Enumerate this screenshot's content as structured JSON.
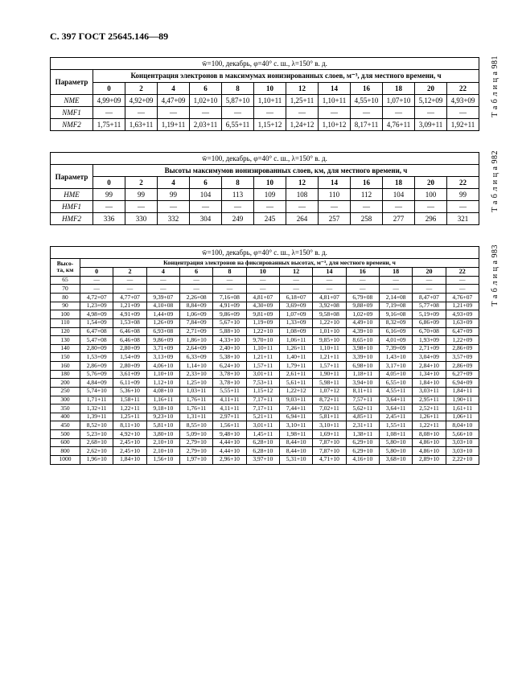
{
  "page_header": "С. 397 ГОСТ 25645.146—89",
  "tables": [
    {
      "caption": "Т а б л и ц а 981",
      "subcap": "w̄=100, декабрь, φ=40° с. ш., λ=150° в. д.",
      "super": "Концентрация электронов в максимумах ионизированных слоев, м⁻³, для местного времени, ч",
      "param_label": "Параметр",
      "cols": [
        "0",
        "2",
        "4",
        "6",
        "8",
        "10",
        "12",
        "14",
        "16",
        "18",
        "20",
        "22"
      ],
      "rows": [
        {
          "label": "NME",
          "cells": [
            "4,99+09",
            "4,92+09",
            "4,47+09",
            "1,02+10",
            "5,87+10",
            "1,10+11",
            "1,25+11",
            "1,10+11",
            "4,55+10",
            "1,07+10",
            "5,12+09",
            "4,93+09"
          ]
        },
        {
          "label": "NMF1",
          "cells": [
            "—",
            "—",
            "—",
            "—",
            "—",
            "—",
            "—",
            "—",
            "—",
            "—",
            "—",
            "—"
          ]
        },
        {
          "label": "NMF2",
          "cells": [
            "1,75+11",
            "1,63+11",
            "1,19+11",
            "2,03+11",
            "6,55+11",
            "1,15+12",
            "1,24+12",
            "1,10+12",
            "8,17+11",
            "4,76+11",
            "3,09+11",
            "1,92+11"
          ]
        }
      ]
    },
    {
      "caption": "Т а б л и ц а 982",
      "subcap": "w̄=100, декабрь, φ=40° с. ш., λ=150° в. д.",
      "super": "Высоты максимумов ионизированных слоев, км, для местного времени, ч",
      "param_label": "Параметр",
      "cols": [
        "0",
        "2",
        "4",
        "6",
        "8",
        "10",
        "12",
        "14",
        "16",
        "18",
        "20",
        "22"
      ],
      "rows": [
        {
          "label": "HME",
          "cells": [
            "99",
            "99",
            "99",
            "104",
            "113",
            "109",
            "108",
            "110",
            "112",
            "104",
            "100",
            "99"
          ]
        },
        {
          "label": "HMF1",
          "cells": [
            "—",
            "—",
            "—",
            "—",
            "—",
            "—",
            "—",
            "—",
            "—",
            "—",
            "—",
            "—"
          ]
        },
        {
          "label": "HMF2",
          "cells": [
            "336",
            "330",
            "332",
            "304",
            "249",
            "245",
            "264",
            "257",
            "258",
            "277",
            "296",
            "321"
          ]
        }
      ]
    },
    {
      "caption": "Т а б л и ц а 983",
      "subcap": "w̄=100, декабрь, φ=40° с. ш., λ=150° в. д.",
      "super": "Концентрация электронов на фиксированных высотах, м⁻³, для местного времени, ч",
      "param_label": "Высо-\nта, км",
      "cols": [
        "0",
        "2",
        "4",
        "6",
        "8",
        "10",
        "12",
        "14",
        "16",
        "18",
        "20",
        "22"
      ],
      "heights": [
        "65",
        "70",
        "80",
        "90",
        "100",
        "110",
        "120",
        "130",
        "140",
        "150",
        "160",
        "180",
        "200",
        "250",
        "300",
        "350",
        "400",
        "450",
        "500",
        "600",
        "800",
        "1000"
      ],
      "matrix": [
        [
          "—",
          "—",
          "—",
          "—",
          "—",
          "—",
          "—",
          "—",
          "—",
          "—",
          "—",
          "—"
        ],
        [
          "—",
          "—",
          "—",
          "—",
          "—",
          "—",
          "—",
          "—",
          "—",
          "—",
          "—",
          "—"
        ],
        [
          "4,72+07",
          "4,77+07",
          "9,39+07",
          "2,26+08",
          "7,16+08",
          "4,81+07",
          "6,18+07",
          "4,81+07",
          "6,79+08",
          "2,14+08",
          "8,47+07",
          "4,76+07"
        ],
        [
          "1,23+09",
          "1,21+09",
          "4,10+08",
          "8,84+09",
          "4,91+09",
          "4,30+09",
          "3,69+09",
          "3,92+08",
          "9,88+09",
          "7,19+08",
          "5,77+08",
          "1,21+09"
        ],
        [
          "4,98+09",
          "4,91+09",
          "1,44+09",
          "1,06+09",
          "9,86+09",
          "9,81+09",
          "1,07+09",
          "9,58+08",
          "1,02+09",
          "9,16+08",
          "5,19+09",
          "4,93+09"
        ],
        [
          "1,54+09",
          "1,53+08",
          "1,26+09",
          "7,84+09",
          "5,67+10",
          "1,19+09",
          "1,33+09",
          "1,22+10",
          "4,49+10",
          "8,32+09",
          "6,86+09",
          "1,63+09"
        ],
        [
          "6,47+08",
          "6,46+08",
          "6,93+08",
          "2,71+09",
          "5,88+10",
          "1,22+10",
          "1,08+09",
          "1,01+10",
          "4,39+10",
          "6,16+09",
          "6,70+08",
          "6,47+09"
        ],
        [
          "5,47+08",
          "6,46+08",
          "9,86+09",
          "1,86+10",
          "4,33+10",
          "9,70+10",
          "1,06+11",
          "9,85+10",
          "8,65+10",
          "4,01+09",
          "1,93+09",
          "1,22+09"
        ],
        [
          "2,80+09",
          "2,80+09",
          "3,71+09",
          "2,64+09",
          "2,40+10",
          "1,10+11",
          "1,26+11",
          "1,10+11",
          "3,98+10",
          "7,39+09",
          "2,71+09",
          "2,86+09"
        ],
        [
          "1,53+09",
          "1,54+09",
          "3,13+09",
          "6,33+09",
          "5,38+10",
          "1,21+11",
          "1,40+11",
          "1,21+11",
          "3,39+10",
          "1,43+10",
          "3,04+09",
          "3,57+09"
        ],
        [
          "2,86+09",
          "2,80+09",
          "4,06+10",
          "1,14+10",
          "6,24+10",
          "1,57+11",
          "1,79+11",
          "1,57+11",
          "6,98+10",
          "3,17+10",
          "2,84+10",
          "2,86+09"
        ],
        [
          "5,76+09",
          "3,61+09",
          "1,10+10",
          "2,33+10",
          "3,78+10",
          "3,01+11",
          "2,61+11",
          "1,90+11",
          "1,18+11",
          "4,05+10",
          "1,34+10",
          "6,27+09"
        ],
        [
          "4,84+09",
          "6,11+09",
          "1,12+10",
          "1,25+10",
          "3,78+10",
          "7,53+11",
          "5,61+11",
          "5,98+11",
          "3,94+10",
          "6,55+10",
          "1,84+10",
          "6,94+09"
        ],
        [
          "5,74+10",
          "5,36+10",
          "4,08+10",
          "1,03+11",
          "5,55+11",
          "1,15+12",
          "1,22+12",
          "1,07+12",
          "8,11+11",
          "4,55+11",
          "3,03+11",
          "1,84+11"
        ],
        [
          "1,71+11",
          "1,58+11",
          "1,16+11",
          "1,76+11",
          "4,11+11",
          "7,17+11",
          "9,03+11",
          "8,72+11",
          "7,57+11",
          "3,64+11",
          "2,95+11",
          "1,90+11"
        ],
        [
          "1,32+11",
          "1,22+11",
          "9,18+10",
          "1,76+11",
          "4,11+11",
          "7,17+11",
          "7,44+11",
          "7,02+11",
          "5,62+11",
          "3,64+11",
          "2,52+11",
          "1,61+11"
        ],
        [
          "1,39+11",
          "1,25+11",
          "9,23+10",
          "1,31+11",
          "2,97+11",
          "5,21+11",
          "6,94+11",
          "5,81+11",
          "4,85+11",
          "2,45+11",
          "1,26+11",
          "1,06+11"
        ],
        [
          "8,52+10",
          "8,11+10",
          "5,81+10",
          "8,55+10",
          "1,56+11",
          "3,01+11",
          "3,10+11",
          "3,10+11",
          "2,31+11",
          "1,55+11",
          "1,22+11",
          "8,04+10"
        ],
        [
          "5,23+10",
          "4,92+10",
          "3,80+10",
          "5,09+10",
          "9,48+10",
          "1,45+11",
          "1,98+11",
          "1,69+11",
          "1,38+11",
          "1,08+11",
          "8,08+10",
          "5,66+10"
        ],
        [
          "2,68+10",
          "2,45+10",
          "2,10+10",
          "2,79+10",
          "4,44+10",
          "6,28+10",
          "8,44+10",
          "7,87+10",
          "6,29+10",
          "5,80+10",
          "4,86+10",
          "3,03+10"
        ],
        [
          "2,62+10",
          "2,45+10",
          "2,10+10",
          "2,79+10",
          "4,44+10",
          "6,28+10",
          "8,44+10",
          "7,87+10",
          "6,29+10",
          "5,80+10",
          "4,86+10",
          "3,03+10"
        ],
        [
          "1,96+10",
          "1,84+10",
          "1,56+10",
          "1,97+10",
          "2,96+10",
          "3,97+10",
          "5,31+10",
          "4,71+10",
          "4,16+10",
          "3,68+10",
          "2,89+10",
          "2,22+10"
        ]
      ]
    }
  ]
}
